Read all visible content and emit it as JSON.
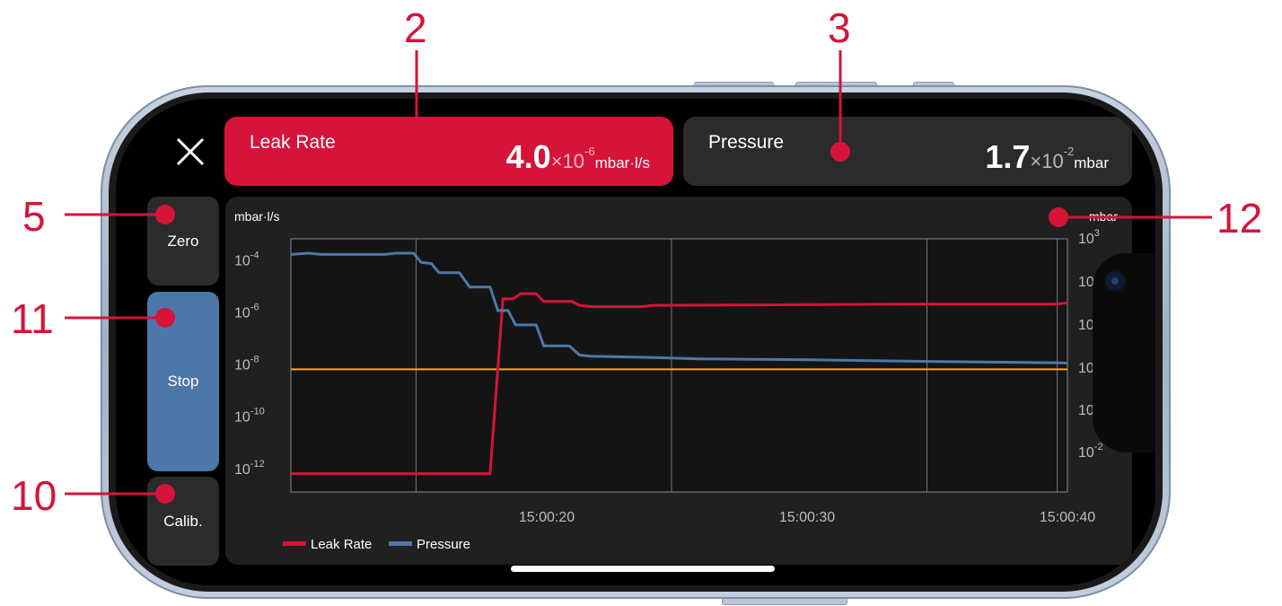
{
  "callouts": {
    "two": "2",
    "three": "3",
    "five": "5",
    "eleven": "11",
    "ten": "10",
    "twelve": "12"
  },
  "leak_rate": {
    "label": "Leak Rate",
    "mantissa": "4.0",
    "multiplier": "×10",
    "exponent": "-6",
    "unit": "mbar·l/s"
  },
  "pressure": {
    "label": "Pressure",
    "mantissa": "1.7",
    "multiplier": "×10",
    "exponent": "-2",
    "unit": "mbar"
  },
  "buttons": {
    "zero": "Zero",
    "stop": "Stop",
    "calib": "Calib."
  },
  "icons": {
    "close": "close-icon"
  },
  "colors": {
    "leak": "#d61339",
    "pressure": "#4d77a8",
    "threshold": "#f2a81d",
    "callout": "#d61339"
  },
  "chart_data": {
    "type": "line",
    "left_axis": {
      "label": "mbar·l/s",
      "scale": "log",
      "ticks": [
        "10-4",
        "10-6",
        "10-8",
        "10-10",
        "10-12"
      ]
    },
    "right_axis": {
      "label": "mbar",
      "scale": "log",
      "ticks": [
        "103",
        "10",
        "10",
        "10",
        "10",
        "10-2"
      ]
    },
    "x_ticks": [
      "15:00:20",
      "15:00:30",
      "15:00:40"
    ],
    "legend": {
      "placement": "bottom-left"
    },
    "grid": true,
    "series": [
      {
        "name": "Leak Rate",
        "color": "#d61339",
        "points": [
          [
            0,
            -12
          ],
          [
            7.8,
            -12
          ],
          [
            8.3,
            -5.3
          ],
          [
            8.7,
            -5.3
          ],
          [
            9.0,
            -5.1
          ],
          [
            9.6,
            -5.1
          ],
          [
            9.9,
            -5.4
          ],
          [
            11.0,
            -5.4
          ],
          [
            11.3,
            -5.55
          ],
          [
            11.8,
            -5.6
          ],
          [
            13.7,
            -5.6
          ],
          [
            14.2,
            -5.55
          ],
          [
            25.0,
            -5.5
          ],
          [
            30.0,
            -5.5
          ],
          [
            30.4,
            -5.45
          ]
        ]
      },
      {
        "name": "Pressure",
        "color": "#4d77a8",
        "points": [
          [
            0,
            -3.6
          ],
          [
            0.7,
            -3.55
          ],
          [
            1.2,
            -3.6
          ],
          [
            3.7,
            -3.6
          ],
          [
            4.1,
            -3.55
          ],
          [
            4.8,
            -3.55
          ],
          [
            5.1,
            -3.9
          ],
          [
            5.5,
            -3.95
          ],
          [
            5.8,
            -4.3
          ],
          [
            6.6,
            -4.3
          ],
          [
            7.0,
            -4.85
          ],
          [
            7.8,
            -4.85
          ],
          [
            8.1,
            -5.75
          ],
          [
            8.5,
            -5.75
          ],
          [
            8.8,
            -6.3
          ],
          [
            9.6,
            -6.3
          ],
          [
            9.9,
            -7.1
          ],
          [
            10.9,
            -7.1
          ],
          [
            11.3,
            -7.45
          ],
          [
            11.7,
            -7.5
          ],
          [
            14.2,
            -7.55
          ],
          [
            16.0,
            -7.6
          ],
          [
            20.0,
            -7.63
          ],
          [
            25.0,
            -7.7
          ],
          [
            30.0,
            -7.75
          ],
          [
            30.4,
            -7.76
          ]
        ]
      }
    ],
    "threshold": {
      "value": -8,
      "color": "#f2a81d"
    }
  }
}
